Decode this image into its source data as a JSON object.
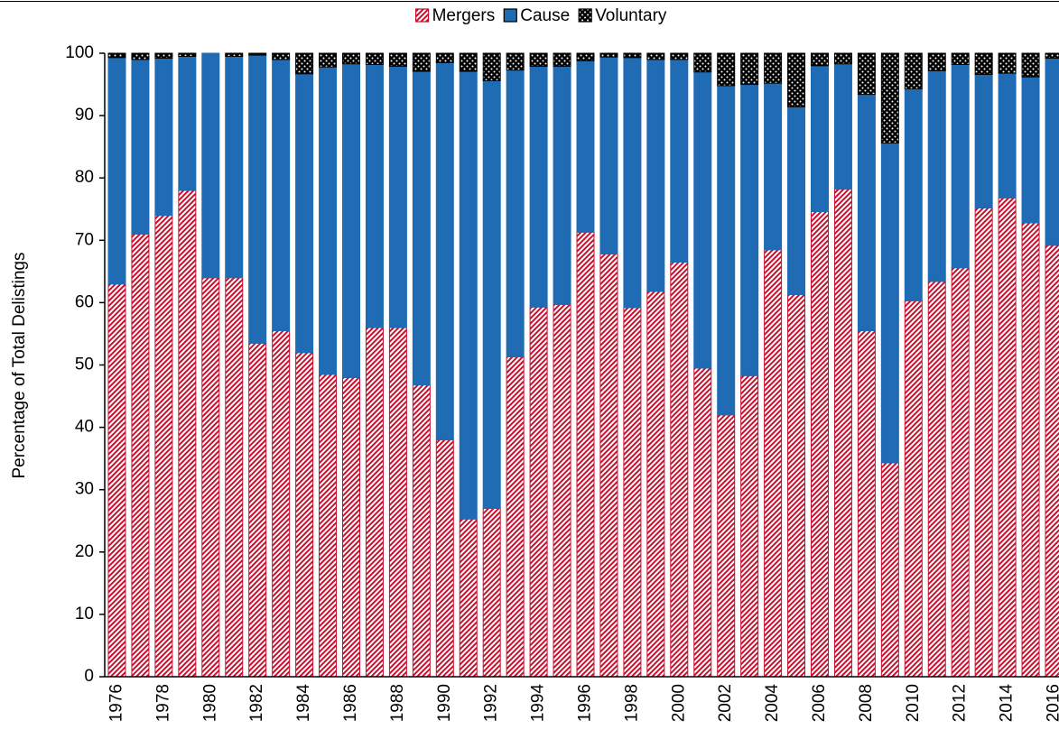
{
  "chart_data": {
    "type": "stacked_bar",
    "y_label": "Percentage of Total Delistings",
    "categories": [
      "1976",
      null,
      "1978",
      null,
      "1980",
      null,
      "1982",
      null,
      "1984",
      null,
      "1986",
      null,
      "1988",
      null,
      "1990",
      null,
      "1992",
      null,
      "1994",
      null,
      "1996",
      null,
      "1998",
      null,
      "2000",
      null,
      "2002",
      null,
      "2004",
      null,
      "2006",
      null,
      "2008",
      null,
      "2010",
      null,
      "2012",
      null,
      "2014",
      null,
      "2016"
    ],
    "series": [
      {
        "name": "Mergers",
        "color": "#c8102e",
        "pattern": "hatch",
        "values": [
          63,
          71,
          74,
          78,
          64,
          64,
          53.5,
          55.5,
          52,
          48.5,
          48,
          56,
          56,
          46.8,
          38,
          25.3,
          27,
          51.3,
          59.3,
          59.7,
          71.3,
          67.8,
          59.2,
          61.8,
          66.5,
          49.5,
          42,
          48.3,
          68.5,
          61.3,
          74.6,
          78.2,
          55.5,
          34.3,
          60.3,
          63.4,
          65.6,
          75.2,
          76.8,
          72.8,
          69.2
        ]
      },
      {
        "name": "Cause",
        "color": "#1f6bb4",
        "pattern": "solid",
        "values": [
          36.3,
          28,
          25.2,
          21.5,
          36,
          35.5,
          46.2,
          43.5,
          44.7,
          49.3,
          50.3,
          42.2,
          41.9,
          50.3,
          60.5,
          71.8,
          68.6,
          46,
          38.6,
          38.2,
          27.5,
          31.6,
          40.1,
          37.2,
          32.5,
          47.5,
          52.8,
          46.7,
          26.7,
          30.1,
          23.4,
          20.1,
          37.9,
          51.3,
          34,
          33.8,
          32.6,
          21.4,
          20,
          23.4,
          30
        ]
      },
      {
        "name": "Voluntary",
        "color": "#000000",
        "pattern": "dots",
        "values": [
          0.7,
          1,
          0.8,
          0.5,
          0,
          0.5,
          0.3,
          1,
          3.3,
          2.2,
          1.7,
          1.8,
          2.1,
          2.9,
          1.5,
          2.9,
          4.4,
          2.7,
          2.1,
          2.1,
          1.2,
          0.6,
          0.7,
          1,
          1,
          3,
          5.2,
          5,
          4.8,
          8.6,
          2,
          1.7,
          6.6,
          14.4,
          5.7,
          2.8,
          1.8,
          3.4,
          3.2,
          3.8,
          0.8
        ]
      }
    ],
    "ylim": [
      0,
      100
    ],
    "yticks": [
      0,
      10,
      20,
      30,
      40,
      50,
      60,
      70,
      80,
      90,
      100
    ],
    "legend": "top",
    "grid": false
  }
}
